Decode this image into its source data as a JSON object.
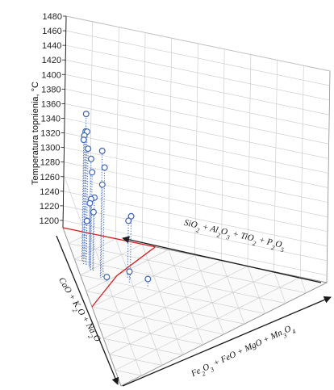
{
  "chart_data": {
    "type": "scatter",
    "subtype": "ternary-3d",
    "title": "",
    "ylabel": "Temperatura topnienia, °C",
    "ylim": [
      1190,
      1480
    ],
    "y_ticks": [
      1200,
      1220,
      1240,
      1260,
      1280,
      1300,
      1320,
      1340,
      1360,
      1380,
      1400,
      1420,
      1440,
      1460,
      1480
    ],
    "axis_labels": {
      "a": {
        "parts": [
          [
            "SiO",
            "2"
          ],
          [
            " + Al",
            "2"
          ],
          [
            "O",
            "3"
          ],
          [
            " + TiO",
            "2"
          ],
          [
            " + P",
            "2"
          ],
          [
            "O",
            "5"
          ]
        ]
      },
      "b": {
        "parts": [
          [
            "Fe",
            "2"
          ],
          [
            "O",
            "3"
          ],
          [
            " + FeO + MgO + Mn",
            "3"
          ],
          [
            "O",
            "4"
          ]
        ]
      },
      "c": {
        "parts": [
          [
            "CaO + K",
            "2"
          ],
          [
            "O + Na",
            "2"
          ],
          [
            "O",
            ""
          ]
        ]
      }
    },
    "grid": true,
    "points": [
      {
        "a": 0.78,
        "b": 0.04,
        "c": 0.18,
        "y": 1388
      },
      {
        "a": 0.75,
        "b": 0.03,
        "c": 0.22,
        "y": 1372
      },
      {
        "a": 0.76,
        "b": 0.04,
        "c": 0.2,
        "y": 1368
      },
      {
        "a": 0.77,
        "b": 0.03,
        "c": 0.2,
        "y": 1362
      },
      {
        "a": 0.78,
        "b": 0.03,
        "c": 0.19,
        "y": 1354
      },
      {
        "a": 0.74,
        "b": 0.04,
        "c": 0.22,
        "y": 1349
      },
      {
        "a": 0.72,
        "b": 0.05,
        "c": 0.23,
        "y": 1338
      },
      {
        "a": 0.7,
        "b": 0.05,
        "c": 0.25,
        "y": 1324
      },
      {
        "a": 0.69,
        "b": 0.06,
        "c": 0.25,
        "y": 1290
      },
      {
        "a": 0.71,
        "b": 0.05,
        "c": 0.24,
        "y": 1285
      },
      {
        "a": 0.73,
        "b": 0.05,
        "c": 0.22,
        "y": 1275
      },
      {
        "a": 0.7,
        "b": 0.06,
        "c": 0.24,
        "y": 1268
      },
      {
        "a": 0.74,
        "b": 0.04,
        "c": 0.22,
        "y": 1250
      },
      {
        "a": 0.64,
        "b": 0.08,
        "c": 0.28,
        "y": 1362
      },
      {
        "a": 0.63,
        "b": 0.09,
        "c": 0.28,
        "y": 1340
      },
      {
        "a": 0.63,
        "b": 0.08,
        "c": 0.29,
        "y": 1318
      },
      {
        "a": 0.6,
        "b": 0.1,
        "c": 0.3,
        "y": 1195
      },
      {
        "a": 0.55,
        "b": 0.2,
        "c": 0.25,
        "y": 1275
      },
      {
        "a": 0.56,
        "b": 0.19,
        "c": 0.25,
        "y": 1268
      },
      {
        "a": 0.53,
        "b": 0.19,
        "c": 0.28,
        "y": 1205
      },
      {
        "a": 0.46,
        "b": 0.26,
        "c": 0.28,
        "y": 1200
      }
    ],
    "colors": {
      "point": "#3b63b8",
      "grid": "#c8c8c8",
      "frame": "#8c8c8c",
      "axis": "#1a1a1a",
      "highlight": "#d62020"
    }
  }
}
